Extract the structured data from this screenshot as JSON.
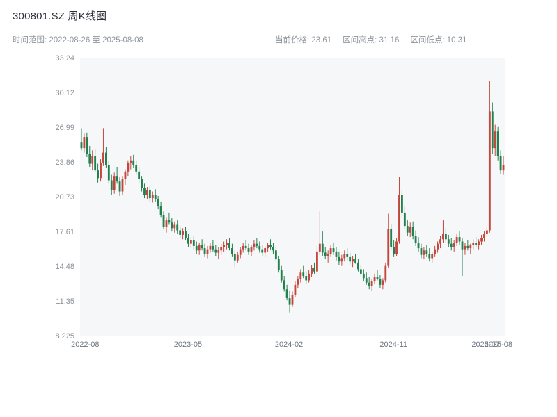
{
  "header": {
    "title": "300801.SZ 周K线图",
    "range_label": "时间范围: 2022-08-26 至 2025-08-08",
    "stats": {
      "current": "当前价格: 23.61",
      "high": "区间高点: 31.16",
      "low": "区间低点: 10.31"
    }
  },
  "chart_data": {
    "type": "candlestick",
    "title": "300801.SZ 周K线图",
    "symbol": "300801.SZ",
    "interval": "weekly",
    "date_range": [
      "2022-08-26",
      "2025-08-08"
    ],
    "current_price": 23.61,
    "range_high": 31.16,
    "range_low": 10.31,
    "ylim": [
      8.225,
      33.24
    ],
    "y_ticks": [
      33.24,
      30.12,
      26.99,
      23.86,
      20.73,
      17.61,
      14.48,
      11.35,
      8.225
    ],
    "x_ticks": [
      {
        "label": "2022-08",
        "pos": 0.012
      },
      {
        "label": "2023-05",
        "pos": 0.254
      },
      {
        "label": "2024-02",
        "pos": 0.492
      },
      {
        "label": "2024-11",
        "pos": 0.738
      },
      {
        "label": "2025-07",
        "pos": 0.955
      },
      {
        "label": "2025-08",
        "pos": 0.985
      }
    ],
    "colors": {
      "up": "#c5463d",
      "down": "#22804e",
      "panel": "#f6f7f9",
      "y_text": "#8b919b",
      "x_text": "#6e7680"
    },
    "legend": "red = up week, green = down week",
    "candles": [
      [
        25.6,
        26.9,
        24.9,
        25.1
      ],
      [
        25.1,
        26.4,
        24.7,
        26.1
      ],
      [
        26.1,
        26.5,
        24.3,
        24.6
      ],
      [
        24.6,
        25.3,
        23.4,
        23.7
      ],
      [
        23.7,
        24.9,
        23.1,
        24.4
      ],
      [
        24.4,
        25.0,
        22.9,
        23.1
      ],
      [
        23.1,
        23.7,
        22.0,
        22.4
      ],
      [
        22.4,
        24.1,
        22.1,
        23.8
      ],
      [
        23.8,
        26.9,
        23.5,
        24.7
      ],
      [
        24.7,
        25.2,
        23.3,
        23.6
      ],
      [
        23.6,
        24.0,
        21.9,
        22.2
      ],
      [
        22.2,
        22.7,
        20.9,
        21.3
      ],
      [
        21.3,
        22.9,
        21.0,
        22.6
      ],
      [
        22.6,
        23.4,
        21.9,
        22.1
      ],
      [
        22.1,
        22.5,
        20.8,
        21.2
      ],
      [
        21.2,
        22.6,
        20.9,
        22.3
      ],
      [
        22.3,
        23.2,
        21.8,
        23.0
      ],
      [
        23.0,
        24.0,
        22.6,
        23.8
      ],
      [
        23.8,
        24.4,
        23.2,
        24.0
      ],
      [
        24.0,
        24.5,
        23.3,
        23.6
      ],
      [
        23.6,
        24.0,
        22.7,
        23.0
      ],
      [
        23.0,
        23.4,
        22.0,
        22.3
      ],
      [
        22.3,
        22.6,
        21.2,
        21.5
      ],
      [
        21.5,
        21.9,
        20.6,
        20.9
      ],
      [
        20.9,
        21.6,
        20.5,
        21.3
      ],
      [
        21.3,
        21.7,
        20.3,
        20.6
      ],
      [
        20.6,
        21.2,
        20.2,
        20.9
      ],
      [
        20.9,
        21.4,
        20.3,
        20.5
      ],
      [
        20.5,
        20.8,
        19.6,
        19.9
      ],
      [
        19.9,
        20.3,
        18.9,
        19.1
      ],
      [
        19.1,
        19.4,
        17.8,
        18.0
      ],
      [
        18.0,
        18.9,
        17.5,
        18.6
      ],
      [
        18.6,
        19.3,
        18.2,
        18.4
      ],
      [
        18.4,
        18.8,
        17.6,
        17.9
      ],
      [
        17.9,
        18.5,
        17.5,
        18.2
      ],
      [
        18.2,
        18.6,
        17.4,
        17.7
      ],
      [
        17.7,
        18.1,
        17.0,
        17.3
      ],
      [
        17.3,
        17.9,
        16.9,
        17.6
      ],
      [
        17.6,
        18.0,
        16.8,
        17.0
      ],
      [
        17.0,
        17.4,
        16.2,
        16.5
      ],
      [
        16.5,
        17.1,
        16.1,
        16.8
      ],
      [
        16.8,
        17.2,
        16.0,
        16.3
      ],
      [
        16.3,
        16.7,
        15.6,
        15.9
      ],
      [
        15.9,
        16.6,
        15.5,
        16.4
      ],
      [
        16.4,
        16.9,
        15.9,
        16.1
      ],
      [
        16.1,
        16.5,
        15.3,
        15.6
      ],
      [
        15.6,
        16.3,
        15.2,
        16.0
      ],
      [
        16.0,
        16.6,
        15.7,
        16.3
      ],
      [
        16.3,
        16.8,
        15.8,
        16.0
      ],
      [
        16.0,
        16.4,
        15.4,
        15.7
      ],
      [
        15.7,
        16.2,
        15.1,
        15.9
      ],
      [
        15.9,
        16.5,
        15.5,
        16.2
      ],
      [
        16.2,
        16.7,
        15.8,
        16.4
      ],
      [
        16.4,
        16.9,
        16.0,
        16.6
      ],
      [
        16.6,
        17.0,
        15.9,
        16.1
      ],
      [
        16.1,
        16.5,
        15.3,
        15.6
      ],
      [
        15.6,
        15.9,
        14.4,
        15.0
      ],
      [
        15.0,
        15.8,
        14.8,
        15.5
      ],
      [
        15.5,
        16.2,
        15.2,
        16.0
      ],
      [
        16.0,
        16.6,
        15.7,
        16.3
      ],
      [
        16.3,
        16.8,
        15.9,
        16.1
      ],
      [
        16.1,
        16.5,
        15.5,
        15.8
      ],
      [
        15.8,
        16.4,
        15.4,
        16.2
      ],
      [
        16.2,
        16.8,
        15.9,
        16.5
      ],
      [
        16.5,
        17.0,
        16.1,
        16.3
      ],
      [
        16.3,
        16.7,
        15.7,
        16.0
      ],
      [
        16.0,
        16.4,
        15.4,
        15.7
      ],
      [
        15.7,
        16.3,
        15.3,
        16.1
      ],
      [
        16.1,
        16.6,
        15.8,
        16.4
      ],
      [
        16.4,
        16.9,
        16.0,
        16.2
      ],
      [
        16.2,
        16.6,
        15.6,
        15.9
      ],
      [
        15.9,
        16.2,
        14.9,
        15.1
      ],
      [
        15.1,
        15.4,
        13.9,
        14.1
      ],
      [
        14.1,
        14.5,
        13.0,
        13.2
      ],
      [
        13.2,
        13.6,
        12.2,
        12.4
      ],
      [
        12.4,
        12.8,
        11.4,
        11.6
      ],
      [
        11.6,
        12.3,
        10.31,
        11.0
      ],
      [
        11.0,
        12.2,
        10.8,
        11.9
      ],
      [
        11.9,
        13.1,
        11.7,
        12.8
      ],
      [
        12.8,
        13.6,
        12.5,
        13.3
      ],
      [
        13.3,
        14.2,
        13.0,
        13.9
      ],
      [
        13.9,
        14.5,
        13.4,
        13.6
      ],
      [
        13.6,
        14.0,
        12.9,
        13.2
      ],
      [
        13.2,
        14.1,
        13.0,
        13.8
      ],
      [
        13.8,
        14.6,
        13.5,
        14.3
      ],
      [
        14.3,
        14.8,
        13.8,
        14.0
      ],
      [
        14.0,
        16.3,
        13.9,
        15.8
      ],
      [
        15.8,
        19.4,
        15.5,
        16.5
      ],
      [
        16.5,
        17.6,
        15.4,
        15.7
      ],
      [
        15.7,
        16.2,
        15.1,
        15.4
      ],
      [
        15.4,
        15.9,
        14.8,
        15.6
      ],
      [
        15.6,
        16.4,
        15.3,
        16.1
      ],
      [
        16.1,
        16.6,
        15.5,
        15.8
      ],
      [
        15.8,
        16.2,
        15.0,
        15.3
      ],
      [
        15.3,
        15.8,
        14.6,
        14.9
      ],
      [
        14.9,
        15.5,
        14.5,
        15.2
      ],
      [
        15.2,
        15.9,
        14.9,
        15.6
      ],
      [
        15.6,
        16.1,
        15.0,
        15.3
      ],
      [
        15.3,
        15.7,
        14.6,
        14.9
      ],
      [
        14.9,
        15.4,
        14.4,
        15.1
      ],
      [
        15.1,
        15.6,
        14.7,
        14.8
      ],
      [
        14.8,
        15.1,
        14.0,
        14.2
      ],
      [
        14.2,
        14.6,
        13.6,
        13.8
      ],
      [
        13.8,
        14.2,
        13.1,
        13.4
      ],
      [
        13.4,
        13.9,
        12.8,
        13.0
      ],
      [
        13.0,
        13.5,
        12.4,
        12.7
      ],
      [
        12.7,
        13.3,
        12.3,
        13.1
      ],
      [
        13.1,
        13.8,
        12.9,
        13.5
      ],
      [
        13.5,
        14.1,
        13.2,
        13.3
      ],
      [
        13.3,
        13.7,
        12.5,
        12.8
      ],
      [
        12.8,
        13.4,
        12.4,
        13.2
      ],
      [
        13.2,
        14.8,
        13.0,
        14.5
      ],
      [
        14.5,
        19.2,
        14.3,
        17.8
      ],
      [
        17.8,
        18.3,
        15.9,
        16.2
      ],
      [
        16.2,
        16.8,
        15.3,
        15.6
      ],
      [
        15.6,
        17.0,
        15.4,
        16.7
      ],
      [
        16.7,
        22.5,
        16.5,
        20.9
      ],
      [
        20.9,
        21.4,
        18.9,
        19.3
      ],
      [
        19.3,
        19.9,
        17.8,
        18.1
      ],
      [
        18.1,
        18.6,
        17.2,
        17.5
      ],
      [
        17.5,
        18.4,
        17.1,
        18.0
      ],
      [
        18.0,
        18.5,
        16.9,
        17.2
      ],
      [
        17.2,
        17.7,
        16.3,
        16.6
      ],
      [
        16.6,
        17.1,
        15.8,
        16.1
      ],
      [
        16.1,
        16.5,
        15.2,
        15.5
      ],
      [
        15.5,
        16.2,
        15.1,
        15.9
      ],
      [
        15.9,
        16.4,
        15.3,
        15.6
      ],
      [
        15.6,
        16.1,
        14.9,
        15.2
      ],
      [
        15.2,
        15.8,
        14.8,
        15.6
      ],
      [
        15.6,
        16.3,
        15.3,
        16.0
      ],
      [
        16.0,
        16.7,
        15.7,
        16.5
      ],
      [
        16.5,
        17.2,
        16.1,
        16.9
      ],
      [
        16.9,
        18.6,
        16.6,
        17.4
      ],
      [
        17.4,
        17.9,
        16.6,
        16.9
      ],
      [
        16.9,
        17.3,
        16.2,
        16.5
      ],
      [
        16.5,
        17.0,
        15.9,
        16.2
      ],
      [
        16.2,
        16.8,
        15.8,
        16.6
      ],
      [
        16.6,
        17.4,
        16.3,
        17.1
      ],
      [
        17.1,
        17.6,
        16.4,
        16.7
      ],
      [
        16.7,
        17.0,
        13.6,
        16.0
      ],
      [
        16.0,
        16.6,
        15.5,
        16.3
      ],
      [
        16.3,
        16.8,
        15.9,
        16.1
      ],
      [
        16.1,
        16.5,
        15.6,
        16.4
      ],
      [
        16.4,
        16.9,
        16.0,
        16.6
      ],
      [
        16.6,
        17.1,
        16.2,
        16.4
      ],
      [
        16.4,
        16.9,
        16.0,
        16.7
      ],
      [
        16.7,
        17.3,
        16.4,
        17.0
      ],
      [
        17.0,
        17.6,
        16.7,
        17.4
      ],
      [
        17.4,
        18.0,
        17.1,
        17.7
      ],
      [
        17.7,
        31.16,
        17.5,
        28.4
      ],
      [
        28.4,
        29.2,
        24.6,
        25.1
      ],
      [
        25.1,
        27.2,
        24.4,
        26.6
      ],
      [
        26.6,
        27.0,
        24.0,
        24.4
      ],
      [
        24.4,
        24.9,
        22.8,
        23.1
      ],
      [
        23.1,
        24.4,
        22.7,
        23.61
      ]
    ]
  }
}
